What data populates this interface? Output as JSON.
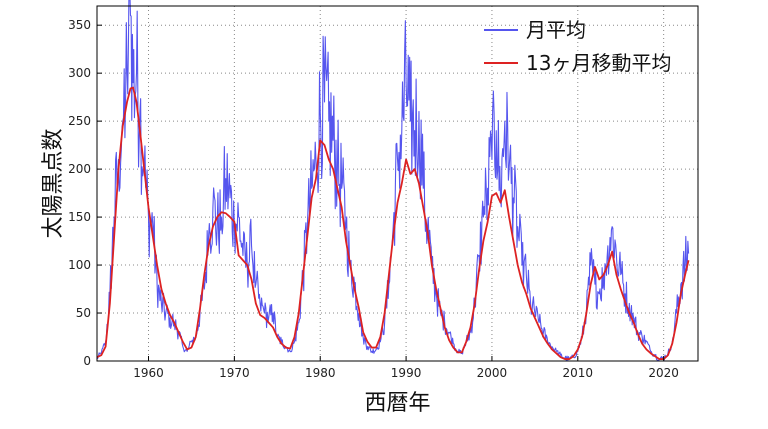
{
  "chart_data": {
    "type": "line",
    "title": "",
    "xlabel": "西暦年",
    "ylabel": "太陽黒点数",
    "xlim": [
      1954,
      2024
    ],
    "ylim": [
      0,
      370
    ],
    "x_ticks": [
      1960,
      1970,
      1980,
      1990,
      2000,
      2010,
      2020
    ],
    "y_ticks": [
      0,
      50,
      100,
      150,
      200,
      250,
      300,
      350
    ],
    "grid": true,
    "legend_position": "top-right",
    "series": [
      {
        "name": "月平均",
        "color": "#5555ee",
        "style": "noisy monthly",
        "x": [
          1954.0,
          1954.5,
          1955.0,
          1955.5,
          1956.0,
          1956.5,
          1957.0,
          1957.5,
          1957.9,
          1958.2,
          1958.6,
          1959.0,
          1959.5,
          1960.0,
          1960.5,
          1961.0,
          1961.5,
          1962.0,
          1962.5,
          1963.0,
          1963.5,
          1964.0,
          1964.5,
          1965.0,
          1965.5,
          1966.0,
          1966.5,
          1967.0,
          1967.5,
          1968.0,
          1968.5,
          1969.0,
          1969.5,
          1970.0,
          1970.5,
          1971.0,
          1971.5,
          1972.0,
          1972.5,
          1973.0,
          1973.5,
          1974.0,
          1974.5,
          1975.0,
          1975.5,
          1976.0,
          1976.5,
          1977.0,
          1977.5,
          1978.0,
          1978.5,
          1979.0,
          1979.5,
          1980.0,
          1980.5,
          1981.0,
          1981.5,
          1982.0,
          1982.5,
          1983.0,
          1983.5,
          1984.0,
          1984.5,
          1985.0,
          1985.5,
          1986.0,
          1986.5,
          1987.0,
          1987.5,
          1988.0,
          1988.5,
          1989.0,
          1989.5,
          1990.0,
          1990.5,
          1991.0,
          1991.5,
          1992.0,
          1992.5,
          1993.0,
          1993.5,
          1994.0,
          1994.5,
          1995.0,
          1995.5,
          1996.0,
          1996.5,
          1997.0,
          1997.5,
          1998.0,
          1998.5,
          1999.0,
          1999.5,
          2000.0,
          2000.5,
          2001.0,
          2001.5,
          2002.0,
          2002.5,
          2003.0,
          2003.5,
          2004.0,
          2004.5,
          2005.0,
          2005.5,
          2006.0,
          2006.5,
          2007.0,
          2007.5,
          2008.0,
          2008.5,
          2009.0,
          2009.5,
          2010.0,
          2010.5,
          2011.0,
          2011.5,
          2012.0,
          2012.5,
          2013.0,
          2013.5,
          2014.0,
          2014.5,
          2015.0,
          2015.5,
          2016.0,
          2016.5,
          2017.0,
          2017.5,
          2018.0,
          2018.5,
          2019.0,
          2019.5,
          2020.0,
          2020.5,
          2021.0,
          2021.5,
          2022.0,
          2022.5,
          2022.9
        ],
        "y": [
          3,
          8,
          20,
          70,
          150,
          210,
          250,
          300,
          360,
          290,
          300,
          260,
          200,
          150,
          140,
          80,
          60,
          50,
          45,
          40,
          30,
          15,
          10,
          20,
          25,
          50,
          75,
          130,
          160,
          140,
          150,
          190,
          170,
          140,
          150,
          110,
          100,
          120,
          80,
          60,
          50,
          45,
          50,
          25,
          20,
          15,
          10,
          20,
          40,
          90,
          140,
          180,
          210,
          260,
          270,
          250,
          230,
          200,
          180,
          140,
          100,
          80,
          50,
          25,
          15,
          10,
          12,
          20,
          40,
          80,
          140,
          210,
          240,
          290,
          250,
          240,
          260,
          180,
          140,
          100,
          70,
          50,
          40,
          30,
          18,
          10,
          8,
          20,
          30,
          60,
          110,
          150,
          180,
          210,
          240,
          170,
          250,
          200,
          170,
          140,
          100,
          90,
          60,
          50,
          40,
          30,
          20,
          15,
          10,
          6,
          3,
          2,
          4,
          10,
          25,
          50,
          100,
          80,
          70,
          90,
          120,
          140,
          110,
          90,
          70,
          60,
          45,
          30,
          25,
          20,
          10,
          6,
          2,
          3,
          8,
          20,
          50,
          80,
          100,
          112
        ]
      },
      {
        "name": "13ヶ月移動平均",
        "color": "#dd2222",
        "x": [
          1954.0,
          1954.5,
          1955.0,
          1955.5,
          1956.0,
          1956.5,
          1957.0,
          1957.5,
          1957.9,
          1958.2,
          1958.6,
          1959.0,
          1959.5,
          1960.0,
          1960.5,
          1961.0,
          1961.5,
          1962.0,
          1962.5,
          1963.0,
          1963.5,
          1964.0,
          1964.5,
          1965.0,
          1965.5,
          1966.0,
          1966.5,
          1967.0,
          1967.5,
          1968.0,
          1968.5,
          1969.0,
          1969.5,
          1970.0,
          1970.5,
          1971.0,
          1971.5,
          1972.0,
          1972.5,
          1973.0,
          1973.5,
          1974.0,
          1974.5,
          1975.0,
          1975.5,
          1976.0,
          1976.5,
          1977.0,
          1977.5,
          1978.0,
          1978.5,
          1979.0,
          1979.5,
          1980.0,
          1980.5,
          1981.0,
          1981.5,
          1982.0,
          1982.5,
          1983.0,
          1983.5,
          1984.0,
          1984.5,
          1985.0,
          1985.5,
          1986.0,
          1986.5,
          1987.0,
          1987.5,
          1988.0,
          1988.5,
          1989.0,
          1989.5,
          1990.0,
          1990.5,
          1991.0,
          1991.5,
          1992.0,
          1992.5,
          1993.0,
          1993.5,
          1994.0,
          1994.5,
          1995.0,
          1995.5,
          1996.0,
          1996.5,
          1997.0,
          1997.5,
          1998.0,
          1998.5,
          1999.0,
          1999.5,
          2000.0,
          2000.5,
          2001.0,
          2001.5,
          2002.0,
          2002.5,
          2003.0,
          2003.5,
          2004.0,
          2004.5,
          2005.0,
          2005.5,
          2006.0,
          2006.5,
          2007.0,
          2007.5,
          2008.0,
          2008.5,
          2009.0,
          2009.5,
          2010.0,
          2010.5,
          2011.0,
          2011.5,
          2012.0,
          2012.5,
          2013.0,
          2013.5,
          2014.0,
          2014.5,
          2015.0,
          2015.5,
          2016.0,
          2016.5,
          2017.0,
          2017.5,
          2018.0,
          2018.5,
          2019.0,
          2019.5,
          2020.0,
          2020.5,
          2021.0,
          2021.5,
          2022.0,
          2022.5,
          2022.9
        ],
        "y": [
          4,
          6,
          15,
          60,
          130,
          200,
          245,
          270,
          284,
          285,
          270,
          240,
          200,
          160,
          130,
          100,
          75,
          60,
          48,
          40,
          30,
          20,
          12,
          14,
          25,
          55,
          90,
          120,
          140,
          150,
          155,
          154,
          150,
          145,
          110,
          105,
          100,
          85,
          60,
          48,
          45,
          40,
          35,
          25,
          18,
          14,
          13,
          25,
          50,
          90,
          130,
          170,
          190,
          230,
          225,
          210,
          200,
          180,
          160,
          125,
          100,
          75,
          55,
          30,
          20,
          14,
          14,
          25,
          50,
          90,
          130,
          165,
          185,
          210,
          195,
          200,
          185,
          160,
          135,
          100,
          75,
          55,
          35,
          22,
          14,
          9,
          9,
          20,
          35,
          60,
          95,
          125,
          145,
          172,
          175,
          165,
          178,
          150,
          125,
          100,
          82,
          70,
          55,
          45,
          35,
          25,
          18,
          12,
          8,
          4,
          2,
          2,
          5,
          12,
          25,
          50,
          80,
          98,
          85,
          90,
          100,
          114,
          90,
          75,
          62,
          50,
          40,
          28,
          18,
          12,
          8,
          5,
          2,
          2,
          6,
          18,
          40,
          70,
          90,
          105
        ]
      }
    ]
  }
}
